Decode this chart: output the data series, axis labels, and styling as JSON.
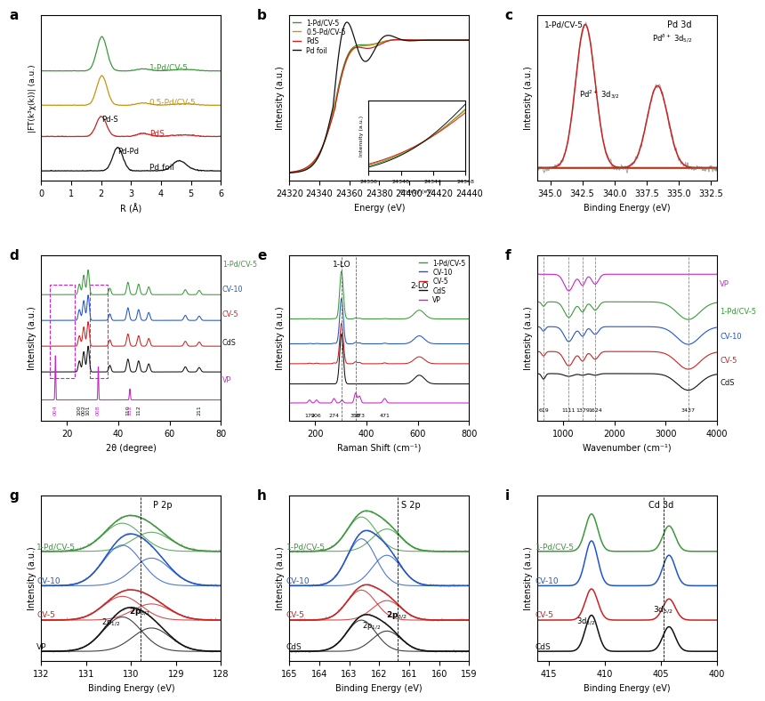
{
  "colors": {
    "green": "#3a9a3a",
    "yellow": "#c8960c",
    "red": "#cc2222",
    "black": "#111111",
    "blue": "#2255cc",
    "magenta": "#cc22cc",
    "gray": "#999999",
    "dark_gray": "#555555"
  },
  "panel_a": {
    "xlabel": "R (Å)",
    "ylabel": "|FT(k³χ(k))| (a.u.)",
    "labels": [
      "1-Pd/CV-5",
      "0.5-Pd/CV-5",
      "PdS",
      "Pd foil"
    ],
    "label_colors": [
      "#3a9a3a",
      "#c8960c",
      "#cc2222",
      "#111111"
    ],
    "offsets": [
      3.2,
      2.1,
      1.1,
      0.0
    ]
  },
  "panel_b": {
    "xlabel": "Energy (eV)",
    "ylabel": "Intensity (a.u.)",
    "labels": [
      "1-Pd/CV-5",
      "0.5-Pd/CV-5",
      "PdS",
      "Pd foil"
    ],
    "label_colors": [
      "#3a9a3a",
      "#c8960c",
      "#cc2222",
      "#111111"
    ]
  },
  "panel_c": {
    "xlabel": "Binding Energy (eV)",
    "ylabel": "Intensity (a.u.)"
  },
  "panel_d": {
    "xlabel": "2θ (degree)",
    "ylabel": "Intensity (a.u.)",
    "labels": [
      "1-Pd/CV-5",
      "CV-10",
      "CV-5",
      "CdS",
      "VP"
    ],
    "label_colors": [
      "#3a9a3a",
      "#2255cc",
      "#cc2222",
      "#111111",
      "#cc22cc"
    ]
  },
  "panel_e": {
    "xlabel": "Raman Shift (cm⁻¹)",
    "ylabel": "Intensity (a.u.)",
    "labels": [
      "1-Pd/CV-5",
      "CV-10",
      "CV-5",
      "CdS",
      "VP"
    ],
    "label_colors": [
      "#3a9a3a",
      "#2255cc",
      "#cc2222",
      "#111111",
      "#cc22cc"
    ]
  },
  "panel_f": {
    "xlabel": "Wavenumber (cm⁻¹)",
    "ylabel": "Intensity (a.u.)",
    "labels": [
      "VP",
      "1-Pd/CV-5",
      "CV-10",
      "CV-5",
      "CdS"
    ],
    "label_colors": [
      "#cc22cc",
      "#3a9a3a",
      "#2255cc",
      "#cc2222",
      "#111111"
    ],
    "vticks": [
      619,
      1111,
      1379,
      1624,
      3437
    ]
  },
  "panel_g": {
    "xlabel": "Binding Energy (eV)",
    "ylabel": "Intensity (a.u.)",
    "labels": [
      "1-Pd/CV-5",
      "CV-10",
      "CV-5",
      "VP"
    ],
    "label_colors": [
      "#3a9a3a",
      "#2255cc",
      "#cc2222",
      "#111111"
    ]
  },
  "panel_h": {
    "xlabel": "Binding Energy (eV)",
    "ylabel": "Intensity (a.u.)",
    "labels": [
      "1-Pd/CV-5",
      "CV-10",
      "CV-5",
      "CdS"
    ],
    "label_colors": [
      "#3a9a3a",
      "#2255cc",
      "#cc2222",
      "#111111"
    ]
  },
  "panel_i": {
    "xlabel": "Binding Energy (eV)",
    "ylabel": "Intensity (a.u.)",
    "labels": [
      "1-Pd/CV-5",
      "CV-10",
      "CV-5",
      "CdS"
    ],
    "label_colors": [
      "#3a9a3a",
      "#2255cc",
      "#cc2222",
      "#111111"
    ]
  }
}
